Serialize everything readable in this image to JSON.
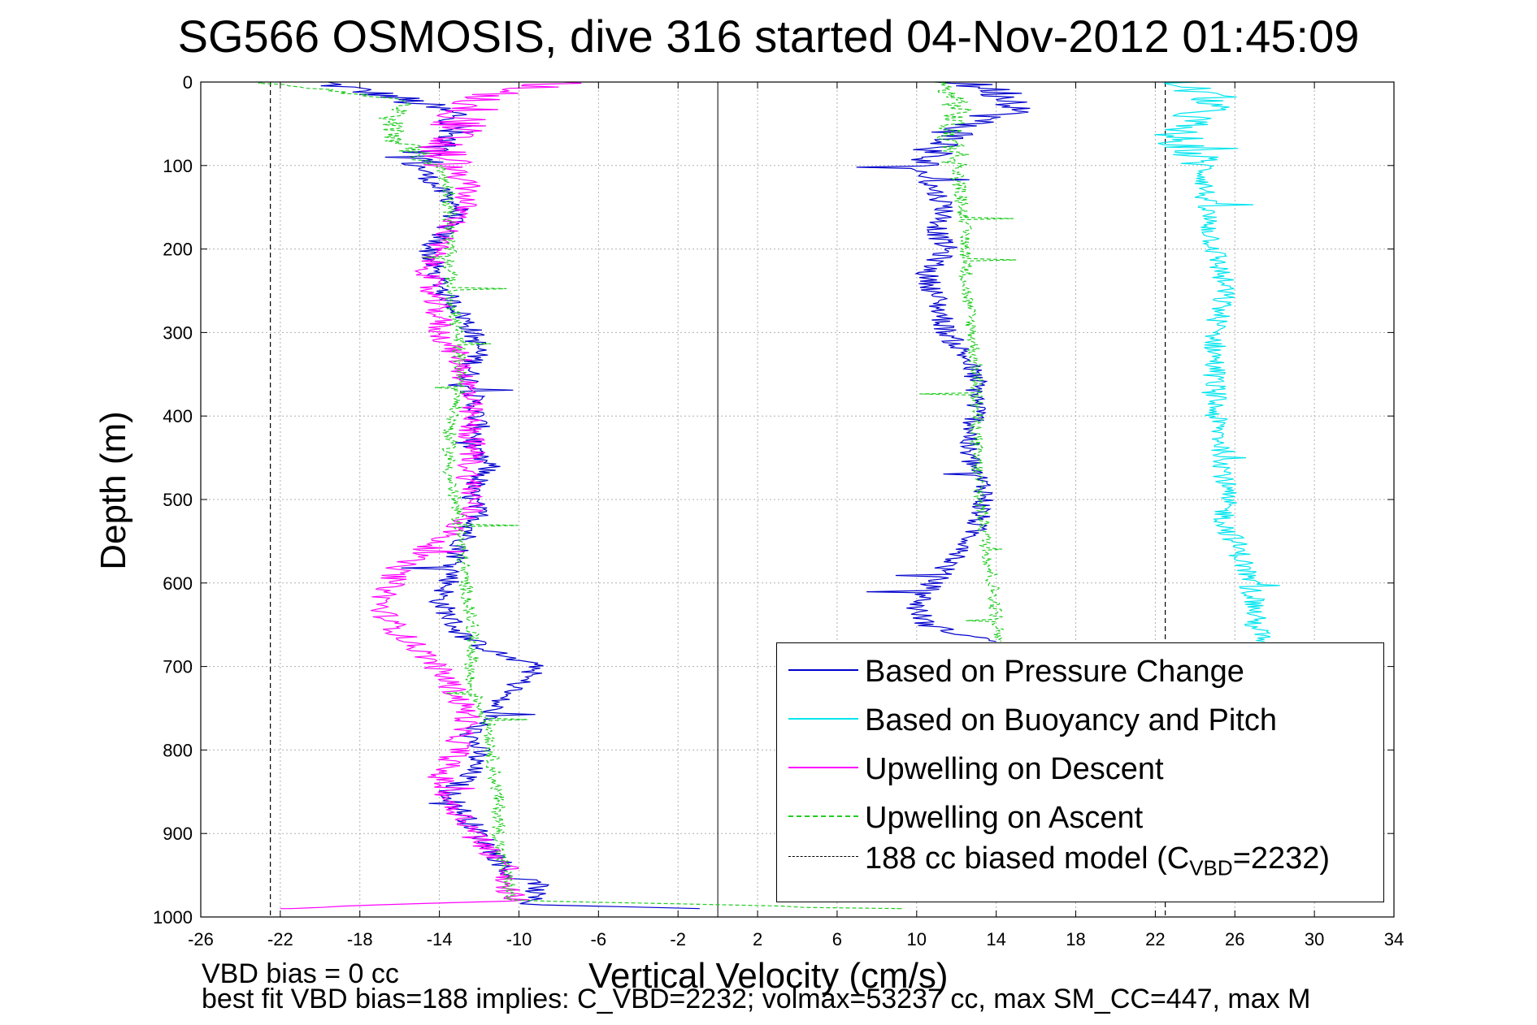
{
  "title": "SG566 OSMOSIS, dive 316 started 04-Nov-2012 01:45:09",
  "notes": {
    "line1": "VBD bias = 0 cc",
    "line2": "best fit VBD bias=188 implies: C_VBD=2232; volmax=53237 cc, max SM_CC=447, max M"
  },
  "chart_data": {
    "type": "line",
    "title": "SG566 OSMOSIS, dive 316 started 04-Nov-2012 01:45:09",
    "xlabel": "Vertical Velocity (cm/s)",
    "ylabel": "Depth (m)",
    "xlim": [
      -26,
      34
    ],
    "ylim": [
      1000,
      0
    ],
    "y_reversed": true,
    "xticks": [
      "-26",
      "-22",
      "-18",
      "-14",
      "-10",
      "-6",
      "-2",
      "2",
      "6",
      "10",
      "14",
      "18",
      "22",
      "26",
      "30",
      "34"
    ],
    "yticks": [
      "0",
      "100",
      "200",
      "300",
      "400",
      "500",
      "600",
      "700",
      "800",
      "900",
      "1000"
    ],
    "grid": true,
    "legend_position": "bottom-right",
    "zero_line_x": 0,
    "series": [
      {
        "name": "Based on Pressure Change",
        "color": "#0000cc",
        "style": "solid",
        "noise": 0.6,
        "segments": [
          {
            "x": [
              -20.0,
              -16.0,
              -13.0,
              -13.5,
              -14.5,
              -15.0,
              -14.0,
              -13.0,
              -13.5,
              -14.5,
              -14.2,
              -13.5,
              -12.5,
              -12.0,
              -12.5,
              -12.3,
              -12.0,
              -12.5,
              -11.5,
              -12.5,
              -12.0,
              -13.0,
              -13.5,
              -14.0,
              -13.5,
              -13.0,
              -12.3,
              -11.5,
              -10.5,
              -9.0,
              -10.0,
              -11.0,
              -11.5,
              -12.5,
              -12.0,
              -12.5,
              -13.5,
              -13.0,
              -12.0,
              -11.0,
              -10.5,
              -9.0,
              -9.5,
              -1.0
            ],
            "y": [
              0,
              20,
              40,
              60,
              80,
              100,
              130,
              150,
              170,
              200,
              230,
              260,
              290,
              320,
              350,
              380,
              420,
              440,
              460,
              490,
              520,
              560,
              600,
              620,
              640,
              660,
              670,
              680,
              690,
              700,
              720,
              740,
              760,
              780,
              800,
              830,
              850,
              870,
              900,
              930,
              950,
              960,
              985,
              990
            ]
          },
          {
            "x": [
              12.0,
              14.0,
              15.5,
              12.5,
              11.0,
              10.0,
              11.5,
              11.0,
              11.5,
              10.5,
              11.0,
              11.5,
              12.5,
              13.0,
              13.0,
              12.5,
              13.0,
              13.5,
              13.0,
              12.5,
              11.5,
              10.5,
              10.0,
              10.5,
              12.0,
              14.0
            ],
            "y": [
              0,
              10,
              30,
              50,
              80,
              100,
              150,
              180,
              200,
              230,
              260,
              300,
              330,
              360,
              400,
              440,
              470,
              490,
              530,
              560,
              580,
              610,
              630,
              650,
              660,
              670
            ]
          }
        ]
      },
      {
        "name": "Based on Buoyancy and Pitch",
        "color": "#00e5ee",
        "style": "solid",
        "noise": 0.6,
        "segments": [
          {
            "x": [
              23.0,
              25.0,
              24.0,
              23.0,
              23.5,
              24.5,
              24.5,
              25.0,
              25.5,
              25.0,
              25.0,
              25.0,
              25.5,
              25.5,
              25.5,
              25.5,
              26.0,
              26.5,
              27.0,
              27.0,
              27.5
            ],
            "y": [
              0,
              20,
              40,
              60,
              80,
              100,
              150,
              200,
              250,
              300,
              350,
              400,
              450,
              480,
              500,
              530,
              550,
              580,
              620,
              650,
              670
            ]
          }
        ]
      },
      {
        "name": "Upwelling on Descent",
        "color": "#ff00ff",
        "style": "solid",
        "noise": 0.7,
        "segments": [
          {
            "x": [
              -8.0,
              -12.0,
              -13.0,
              -14.0,
              -13.5,
              -12.5,
              -13.0,
              -14.0,
              -14.5,
              -14.5,
              -14.0,
              -14.0,
              -13.0,
              -12.5,
              -12.5,
              -12.3,
              -12.5,
              -12.3,
              -12.5,
              -14.0,
              -16.0,
              -17.0,
              -16.0,
              -14.5,
              -13.5,
              -13.0,
              -12.5,
              -13.0,
              -13.0,
              -14.0,
              -13.5,
              -12.5,
              -11.5,
              -10.5,
              -11.0,
              -10.0,
              -22.0
            ],
            "y": [
              0,
              20,
              50,
              80,
              100,
              130,
              160,
              190,
              220,
              250,
              280,
              300,
              330,
              370,
              410,
              440,
              470,
              500,
              520,
              550,
              580,
              630,
              660,
              690,
              720,
              740,
              760,
              780,
              800,
              830,
              860,
              890,
              920,
              940,
              960,
              980,
              990
            ]
          }
        ]
      },
      {
        "name": "Upwelling on Ascent",
        "color": "#22cc22",
        "style": "dashed",
        "noise": 0.35,
        "segments": [
          {
            "x": [
              -23.0,
              -16.0,
              -16.5,
              -16.0,
              -15.0,
              -14.0,
              -13.5,
              -13.5,
              -13.5,
              -13.3,
              -13.0,
              -13.0,
              -13.5,
              -13.5,
              -13.0,
              -12.8,
              -12.5,
              -12.3,
              -12.5,
              -11.5,
              -11.3,
              -11.0,
              -11.0,
              -10.5,
              -10.5,
              9.0
            ],
            "y": [
              0,
              20,
              50,
              70,
              90,
              100,
              130,
              170,
              220,
              270,
              320,
              370,
              420,
              470,
              530,
              580,
              630,
              680,
              720,
              770,
              820,
              870,
              920,
              960,
              980,
              990
            ]
          },
          {
            "x": [
              11.0,
              12.0,
              12.0,
              11.5,
              12.0,
              12.0,
              12.3,
              12.5,
              12.5,
              12.8,
              13.0,
              13.0,
              13.0,
              13.2,
              13.5,
              13.8,
              14.0,
              14.2
            ],
            "y": [
              0,
              20,
              40,
              60,
              80,
              100,
              150,
              200,
              250,
              300,
              350,
              400,
              450,
              500,
              550,
              600,
              640,
              670
            ]
          }
        ]
      }
    ],
    "reference_lines": [
      {
        "name": "188 cc biased model (C_VBD=2232)",
        "color": "#000000",
        "style": "dashed",
        "x": [
          -22.5,
          22.5
        ]
      }
    ],
    "legend": [
      {
        "label": "Based on Pressure Change",
        "color": "#0000cc",
        "style": "solid"
      },
      {
        "label": "Based on Buoyancy and Pitch",
        "color": "#00e5ee",
        "style": "solid"
      },
      {
        "label": "Upwelling on Descent",
        "color": "#ff00ff",
        "style": "solid"
      },
      {
        "label": "Upwelling on Ascent",
        "color": "#22cc22",
        "style": "dashed"
      },
      {
        "label_main": "188 cc biased model (C",
        "label_sub": "VBD",
        "label_tail": "=2232)",
        "color": "#000000",
        "style": "dashed"
      }
    ]
  }
}
